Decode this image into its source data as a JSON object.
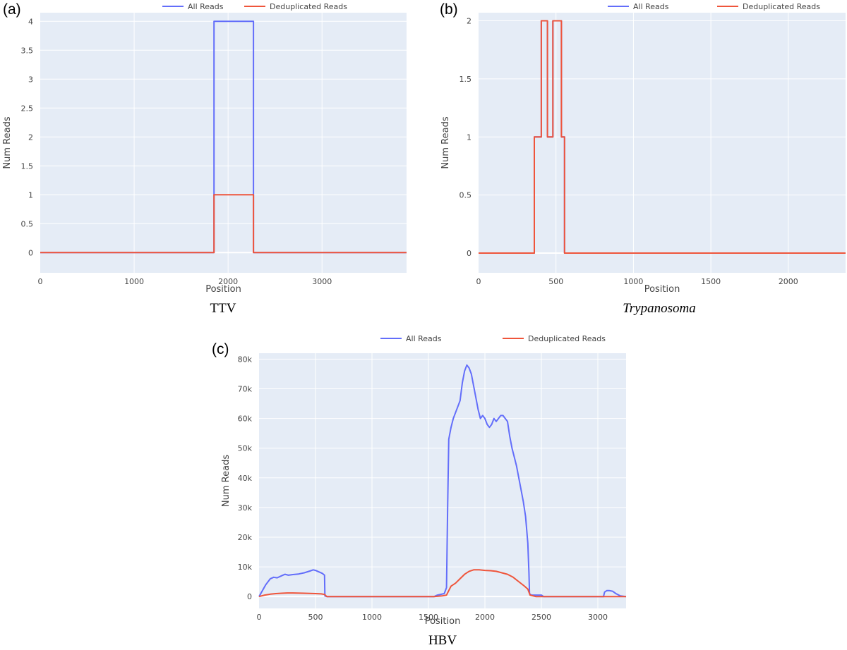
{
  "colors": {
    "all_reads": "#636efa",
    "dedup_reads": "#ef553b",
    "plot_bg": "#e5ecf6",
    "grid": "#ffffff"
  },
  "chart_data": [
    {
      "type": "line",
      "panel_label": "(a)",
      "caption": "TTV",
      "caption_italic": false,
      "xlabel": "Position",
      "ylabel": "Num Reads",
      "xlim": [
        0,
        3900
      ],
      "ylim": [
        -0.35,
        4.15
      ],
      "x_ticks": [
        0,
        1000,
        2000,
        3000
      ],
      "x_tick_labels": [
        "0",
        "1000",
        "2000",
        "3000"
      ],
      "y_ticks": [
        0,
        0.5,
        1,
        1.5,
        2,
        2.5,
        3,
        3.5,
        4
      ],
      "y_tick_labels": [
        "0",
        "0.5",
        "1",
        "1.5",
        "2",
        "2.5",
        "3",
        "3.5",
        "4"
      ],
      "grid": true,
      "legend_position": "top",
      "series": [
        {
          "name": "All Reads",
          "color": "#636efa",
          "x": [
            0,
            1850,
            1850,
            2270,
            2270,
            3900
          ],
          "y": [
            0,
            0,
            4,
            4,
            0,
            0
          ]
        },
        {
          "name": "Deduplicated Reads",
          "color": "#ef553b",
          "x": [
            0,
            1850,
            1850,
            2270,
            2270,
            3900
          ],
          "y": [
            0,
            0,
            1,
            1,
            0,
            0
          ]
        }
      ]
    },
    {
      "type": "line",
      "panel_label": "(b)",
      "caption": "Trypanosoma",
      "caption_italic": true,
      "xlabel": "Position",
      "ylabel": "Num Reads",
      "xlim": [
        0,
        2370
      ],
      "ylim": [
        -0.17,
        2.07
      ],
      "x_ticks": [
        0,
        500,
        1000,
        1500,
        2000
      ],
      "x_tick_labels": [
        "0",
        "500",
        "1000",
        "1500",
        "2000"
      ],
      "y_ticks": [
        0,
        0.5,
        1,
        1.5,
        2
      ],
      "y_tick_labels": [
        "0",
        "0.5",
        "1",
        "1.5",
        "2"
      ],
      "grid": true,
      "legend_position": "top",
      "series": [
        {
          "name": "All Reads",
          "color": "#636efa",
          "x": [
            0,
            360,
            360,
            405,
            405,
            445,
            445,
            480,
            480,
            535,
            535,
            555,
            555,
            2370
          ],
          "y": [
            0,
            0,
            1,
            1,
            2,
            2,
            1,
            1,
            2,
            2,
            1,
            1,
            0,
            0
          ]
        },
        {
          "name": "Deduplicated Reads",
          "color": "#ef553b",
          "x": [
            0,
            360,
            360,
            405,
            405,
            445,
            445,
            480,
            480,
            535,
            535,
            555,
            555,
            2370
          ],
          "y": [
            0,
            0,
            1,
            1,
            2,
            2,
            1,
            1,
            2,
            2,
            1,
            1,
            0,
            0
          ]
        }
      ]
    },
    {
      "type": "line",
      "panel_label": "(c)",
      "caption": "HBV",
      "caption_italic": false,
      "xlabel": "Position",
      "ylabel": "Num Reads",
      "xlim": [
        0,
        3250
      ],
      "ylim": [
        -4000,
        82000
      ],
      "x_ticks": [
        0,
        500,
        1000,
        1500,
        2000,
        2500,
        3000
      ],
      "x_tick_labels": [
        "0",
        "500",
        "1000",
        "1500",
        "2000",
        "2500",
        "3000"
      ],
      "y_ticks": [
        0,
        10000,
        20000,
        30000,
        40000,
        50000,
        60000,
        70000,
        80000
      ],
      "y_tick_labels": [
        "0",
        "10k",
        "20k",
        "30k",
        "40k",
        "50k",
        "60k",
        "70k",
        "80k"
      ],
      "grid": true,
      "legend_position": "top",
      "series": [
        {
          "name": "All Reads",
          "color": "#636efa",
          "x": [
            0,
            30,
            60,
            100,
            130,
            160,
            200,
            230,
            260,
            300,
            350,
            400,
            450,
            480,
            500,
            530,
            560,
            580,
            583,
            600,
            1550,
            1580,
            1640,
            1660,
            1670,
            1680,
            1700,
            1720,
            1740,
            1760,
            1780,
            1800,
            1820,
            1840,
            1860,
            1880,
            1900,
            1920,
            1940,
            1960,
            1980,
            2000,
            2020,
            2040,
            2060,
            2080,
            2100,
            2120,
            2140,
            2160,
            2180,
            2200,
            2220,
            2240,
            2260,
            2280,
            2300,
            2320,
            2340,
            2360,
            2380,
            2390,
            2395,
            2410,
            2500,
            2520,
            3050,
            3060,
            3080,
            3100,
            3130,
            3160,
            3200,
            3250
          ],
          "y": [
            0,
            2000,
            4000,
            6000,
            6500,
            6300,
            7000,
            7500,
            7200,
            7400,
            7600,
            8000,
            8600,
            9000,
            8800,
            8300,
            7800,
            7200,
            200,
            0,
            0,
            500,
            1000,
            3000,
            30000,
            53000,
            57000,
            60000,
            62000,
            64000,
            66000,
            72000,
            76000,
            78000,
            77000,
            75000,
            71000,
            67000,
            63000,
            60000,
            61000,
            60000,
            58000,
            57000,
            58000,
            60000,
            59000,
            60000,
            61000,
            61000,
            60000,
            59000,
            54000,
            50000,
            47000,
            44000,
            40000,
            36000,
            32000,
            27000,
            18000,
            8000,
            1000,
            500,
            500,
            0,
            0,
            1500,
            2000,
            2000,
            1800,
            1000,
            200,
            0
          ]
        },
        {
          "name": "Deduplicated Reads",
          "color": "#ef553b",
          "x": [
            0,
            50,
            100,
            150,
            200,
            250,
            300,
            400,
            500,
            550,
            580,
            600,
            1550,
            1620,
            1660,
            1680,
            1700,
            1740,
            1780,
            1820,
            1860,
            1900,
            1950,
            2000,
            2050,
            2100,
            2150,
            2200,
            2250,
            2300,
            2350,
            2380,
            2400,
            2450,
            3250
          ],
          "y": [
            0,
            500,
            800,
            1000,
            1100,
            1200,
            1200,
            1100,
            1000,
            900,
            700,
            0,
            0,
            200,
            500,
            2000,
            3500,
            4500,
            6000,
            7500,
            8500,
            9000,
            9000,
            8800,
            8700,
            8500,
            8000,
            7500,
            6500,
            5000,
            3500,
            2500,
            500,
            0,
            0
          ]
        }
      ]
    }
  ]
}
